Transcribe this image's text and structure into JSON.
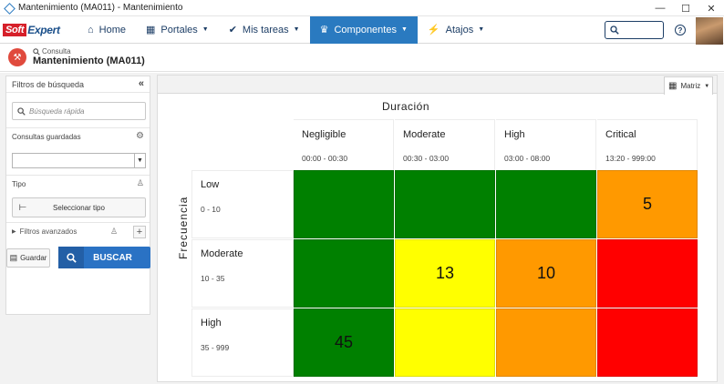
{
  "window": {
    "title": "Mantenimiento (MA011) - Mantenimiento",
    "controls": [
      "—",
      "☐",
      "✕"
    ]
  },
  "topnav": {
    "logo": {
      "part1": "Soft",
      "part2": "Expert"
    },
    "items": [
      {
        "label": "Home",
        "icon": "home-icon",
        "glyph": "⌂",
        "caret": false,
        "active": false
      },
      {
        "label": "Portales",
        "icon": "grid-icon",
        "glyph": "▦",
        "caret": true,
        "active": false
      },
      {
        "label": "Mis tareas",
        "icon": "check-icon",
        "glyph": "✔",
        "caret": true,
        "active": false
      },
      {
        "label": "Componentes",
        "icon": "trophy-icon",
        "glyph": "♛",
        "caret": true,
        "active": true
      },
      {
        "label": "Atajos",
        "icon": "bolt-icon",
        "glyph": "⚡",
        "caret": true,
        "active": false
      }
    ],
    "help": "?"
  },
  "page": {
    "breadcrumb": "Consulta",
    "title": "Mantenimiento (MA011)"
  },
  "filters": {
    "header": "Filtros de búsqueda",
    "quick_search_placeholder": "Búsqueda rápida",
    "saved_queries_label": "Consultas guardadas",
    "type_label": "Tipo",
    "select_type_button": "Seleccionar tipo",
    "advanced_label": "Filtros avanzados",
    "save_button": "Guardar",
    "search_button": "BUSCAR"
  },
  "matrix": {
    "view_selector": "Matriz",
    "x_title": "Duración",
    "y_title": "Frecuencia",
    "columns": [
      {
        "name": "Negligible",
        "range": "00:00 - 00:30"
      },
      {
        "name": "Moderate",
        "range": "00:30 - 03:00"
      },
      {
        "name": "High",
        "range": "03:00 - 08:00"
      },
      {
        "name": "Critical",
        "range": "13:20 - 999:00"
      }
    ],
    "rows": [
      {
        "name": "Low",
        "range": "0 - 10",
        "cells": [
          {
            "value": "",
            "color": "#008000"
          },
          {
            "value": "",
            "color": "#008000"
          },
          {
            "value": "",
            "color": "#008000"
          },
          {
            "value": "5",
            "color": "#ff9900"
          }
        ]
      },
      {
        "name": "Moderate",
        "range": "10 - 35",
        "cells": [
          {
            "value": "",
            "color": "#008000"
          },
          {
            "value": "13",
            "color": "#ffff00"
          },
          {
            "value": "10",
            "color": "#ff9900"
          },
          {
            "value": "",
            "color": "#ff0000"
          }
        ]
      },
      {
        "name": "High",
        "range": "35 - 999",
        "cells": [
          {
            "value": "45",
            "color": "#008000"
          },
          {
            "value": "",
            "color": "#ffff00"
          },
          {
            "value": "",
            "color": "#ff9900"
          },
          {
            "value": "",
            "color": "#ff0000"
          }
        ]
      }
    ]
  }
}
